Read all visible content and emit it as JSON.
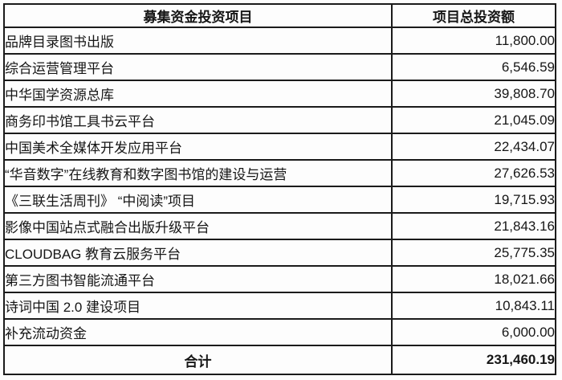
{
  "table": {
    "title_semantic": "fundraising-investment-projects-table",
    "colors": {
      "border": "#1b1b1b",
      "text": "#161616",
      "background": "#fdfdfd"
    },
    "header": {
      "project": "募集资金投资项目",
      "amount": "项目总投资额"
    },
    "rows": [
      {
        "project": "品牌目录图书出版",
        "amount": "11,800.00"
      },
      {
        "project": "综合运营管理平台",
        "amount": "6,546.59"
      },
      {
        "project": "中华国学资源总库",
        "amount": "39,808.70"
      },
      {
        "project": "商务印书馆工具书云平台",
        "amount": "21,045.09"
      },
      {
        "project": "中国美术全媒体开发应用平台",
        "amount": "22,434.07"
      },
      {
        "project": "“华音数字”在线教育和数字图书馆的建设与运营",
        "amount": "27,626.53"
      },
      {
        "project": "《三联生活周刊》 “中阅读”项目",
        "amount": "19,715.93"
      },
      {
        "project": "影像中国站点式融合出版升级平台",
        "amount": "21,843.16"
      },
      {
        "project": "CLOUDBAG 教育云服务平台",
        "amount": "25,775.35"
      },
      {
        "project": "第三方图书智能流通平台",
        "amount": "18,021.66"
      },
      {
        "project": "诗词中国 2.0 建设项目",
        "amount": "10,843.11"
      },
      {
        "project": "补充流动资金",
        "amount": "6,000.00"
      }
    ],
    "total": {
      "label": "合计",
      "amount": "231,460.19"
    }
  }
}
